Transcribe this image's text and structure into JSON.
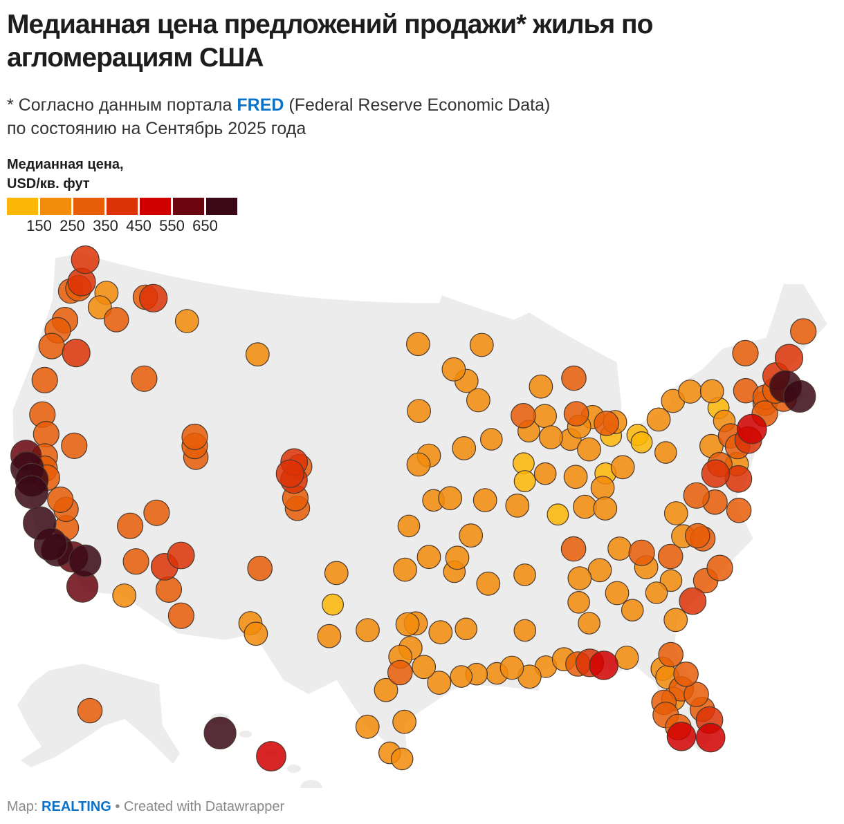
{
  "title": "Медианная цена предложений продажи* жилья по агломерациям США",
  "subtitle": {
    "line1_prefix": "* Согласно данным портала ",
    "line1_link": "FRED",
    "line1_suffix": " (Federal Reserve Economic Data)",
    "line2": "по состоянию на Сентябрь 2025 года"
  },
  "legend": {
    "title_line1": "Медианная цена,",
    "title_line2": "USD/кв. фут",
    "colors": [
      "#fdb706",
      "#f38b0b",
      "#e85d07",
      "#dc3306",
      "#d10000",
      "#6b0610",
      "#3a0816"
    ],
    "ticks": [
      "150",
      "250",
      "350",
      "450",
      "550",
      "650"
    ]
  },
  "footer": {
    "prefix": "Map: ",
    "brand": "REALTING",
    "suffix": " • Created with Datawrapper"
  },
  "map_style": {
    "land": "#ececec",
    "border": "#999999",
    "marker_stroke": "#4a3a30"
  },
  "markers": [
    [
      -122.3,
      47.6,
      400
    ],
    [
      -122.5,
      48.75,
      400
    ],
    [
      -122.4,
      47.25,
      300
    ],
    [
      -122.9,
      47.0,
      250
    ],
    [
      -120.3,
      47.4,
      200
    ],
    [
      -117.4,
      47.66,
      250
    ],
    [
      -116.8,
      47.7,
      400
    ],
    [
      -119.1,
      46.2,
      250
    ],
    [
      -120.5,
      46.6,
      200
    ],
    [
      -122.7,
      45.5,
      300
    ],
    [
      -123.0,
      44.9,
      300
    ],
    [
      -121.3,
      44.05,
      400
    ],
    [
      -123.1,
      44.05,
      300
    ],
    [
      -122.9,
      42.3,
      300
    ],
    [
      -116.2,
      43.6,
      300
    ],
    [
      -114.0,
      46.9,
      200
    ],
    [
      -108.5,
      45.8,
      200
    ],
    [
      -122.4,
      40.6,
      300
    ],
    [
      -121.8,
      39.7,
      300
    ],
    [
      -121.5,
      38.6,
      300
    ],
    [
      -122.7,
      38.4,
      550
    ],
    [
      -122.4,
      37.8,
      700
    ],
    [
      -121.9,
      37.3,
      700
    ],
    [
      -121.3,
      38.0,
      300
    ],
    [
      -121.0,
      37.6,
      300
    ],
    [
      -119.8,
      36.7,
      300
    ],
    [
      -121.7,
      36.7,
      700
    ],
    [
      -120.7,
      35.3,
      700
    ],
    [
      -119.0,
      35.4,
      250
    ],
    [
      -119.3,
      36.3,
      250
    ],
    [
      -119.7,
      34.4,
      700
    ],
    [
      -119.2,
      34.2,
      650
    ],
    [
      -118.2,
      34.05,
      550
    ],
    [
      -117.4,
      34.0,
      650
    ],
    [
      -117.2,
      32.7,
      600
    ],
    [
      -119.8,
      39.5,
      300
    ],
    [
      -115.1,
      36.2,
      300
    ],
    [
      -114.6,
      32.7,
      200
    ],
    [
      -112.0,
      33.4,
      300
    ],
    [
      -111.0,
      32.2,
      300
    ],
    [
      -112.5,
      34.5,
      350
    ],
    [
      -114.3,
      34.5,
      300
    ],
    [
      -113.6,
      37.1,
      300
    ],
    [
      -111.9,
      40.75,
      300
    ],
    [
      -111.7,
      40.2,
      250
    ],
    [
      -112.0,
      41.2,
      300
    ],
    [
      -111.6,
      35.2,
      350
    ],
    [
      -105.0,
      39.7,
      350
    ],
    [
      -105.3,
      40.0,
      400
    ],
    [
      -105.1,
      40.6,
      350
    ],
    [
      -104.7,
      40.4,
      250
    ],
    [
      -104.8,
      38.8,
      300
    ],
    [
      -104.6,
      38.3,
      250
    ],
    [
      -106.6,
      35.1,
      250
    ],
    [
      -106.8,
      32.3,
      200
    ],
    [
      -106.4,
      31.8,
      200
    ],
    [
      -101.8,
      35.2,
      200
    ],
    [
      -101.9,
      33.6,
      130
    ],
    [
      -102.0,
      32.0,
      200
    ],
    [
      -96.8,
      46.9,
      200
    ],
    [
      -96.7,
      43.5,
      200
    ],
    [
      -93.3,
      45.0,
      200
    ],
    [
      -92.1,
      46.8,
      200
    ],
    [
      -94.2,
      45.6,
      200
    ],
    [
      -92.5,
      44.0,
      200
    ],
    [
      -89.4,
      43.1,
      250
    ],
    [
      -87.9,
      43.0,
      200
    ],
    [
      -88.0,
      44.5,
      200
    ],
    [
      -87.6,
      41.9,
      200
    ],
    [
      -93.6,
      41.6,
      200
    ],
    [
      -91.7,
      42.0,
      150
    ],
    [
      -96.0,
      41.25,
      200
    ],
    [
      -96.7,
      40.8,
      200
    ],
    [
      -94.6,
      39.1,
      200
    ],
    [
      -97.3,
      37.7,
      150
    ],
    [
      -95.7,
      39.0,
      150
    ],
    [
      -93.3,
      37.2,
      200
    ],
    [
      -90.2,
      38.6,
      200
    ],
    [
      -92.3,
      38.95,
      200
    ],
    [
      -89.6,
      40.7,
      130
    ],
    [
      -89.6,
      39.8,
      130
    ],
    [
      -88.2,
      40.1,
      150
    ],
    [
      -89.1,
      42.3,
      150
    ],
    [
      -86.2,
      39.8,
      200
    ],
    [
      -85.1,
      41.1,
      200
    ],
    [
      -86.3,
      41.7,
      150
    ],
    [
      -85.7,
      42.96,
      250
    ],
    [
      -84.6,
      42.7,
      200
    ],
    [
      -83.1,
      42.3,
      200
    ],
    [
      -83.7,
      42.3,
      250
    ],
    [
      -85.6,
      42.3,
      200
    ],
    [
      -85.6,
      44.76,
      250
    ],
    [
      -83.5,
      41.65,
      130
    ],
    [
      -81.7,
      41.5,
      130
    ],
    [
      -81.5,
      41.1,
      130
    ],
    [
      -83.0,
      40.0,
      200
    ],
    [
      -84.5,
      39.1,
      200
    ],
    [
      -84.2,
      39.8,
      130
    ],
    [
      -85.8,
      38.25,
      200
    ],
    [
      -84.5,
      38.05,
      200
    ],
    [
      -87.6,
      38.0,
      130
    ],
    [
      -80.0,
      40.4,
      150
    ],
    [
      -80.1,
      42.1,
      200
    ],
    [
      -78.9,
      42.9,
      200
    ],
    [
      -77.6,
      43.2,
      200
    ],
    [
      -76.1,
      43.0,
      200
    ],
    [
      -73.8,
      42.65,
      250
    ],
    [
      -75.9,
      42.1,
      130
    ],
    [
      -75.7,
      41.4,
      150
    ],
    [
      -75.5,
      40.6,
      250
    ],
    [
      -76.9,
      40.3,
      200
    ],
    [
      -75.2,
      40.0,
      250
    ],
    [
      -74.0,
      40.7,
      500
    ],
    [
      -74.4,
      40.2,
      350
    ],
    [
      -72.7,
      41.8,
      250
    ],
    [
      -72.9,
      41.3,
      300
    ],
    [
      -71.4,
      41.8,
      300
    ],
    [
      -71.06,
      42.36,
      650
    ],
    [
      -71.8,
      42.3,
      300
    ],
    [
      -72.6,
      42.1,
      250
    ],
    [
      -71.5,
      43.0,
      350
    ],
    [
      -70.3,
      43.7,
      400
    ],
    [
      -73.2,
      44.5,
      300
    ],
    [
      -68.8,
      44.8,
      300
    ],
    [
      -70.3,
      41.7,
      650
    ],
    [
      -76.6,
      39.3,
      250
    ],
    [
      -77.0,
      38.9,
      400
    ],
    [
      -77.4,
      37.5,
      250
    ],
    [
      -76.0,
      36.85,
      250
    ],
    [
      -78.5,
      38.0,
      300
    ],
    [
      -80.0,
      37.3,
      200
    ],
    [
      -75.5,
      39.15,
      200
    ],
    [
      -75.6,
      38.4,
      350
    ],
    [
      -78.6,
      35.8,
      250
    ],
    [
      -78.9,
      36.0,
      250
    ],
    [
      -79.8,
      36.1,
      200
    ],
    [
      -80.8,
      35.2,
      250
    ],
    [
      -82.55,
      35.6,
      300
    ],
    [
      -77.9,
      34.2,
      300
    ],
    [
      -78.9,
      33.7,
      250
    ],
    [
      -79.9,
      32.8,
      350
    ],
    [
      -81.0,
      34.0,
      150
    ],
    [
      -82.4,
      34.85,
      200
    ],
    [
      -83.9,
      35.96,
      200
    ],
    [
      -86.8,
      36.2,
      250
    ],
    [
      -90.0,
      35.1,
      150
    ],
    [
      -85.3,
      35.0,
      200
    ],
    [
      -84.4,
      33.75,
      200
    ],
    [
      -82.0,
      33.5,
      150
    ],
    [
      -81.1,
      32.0,
      200
    ],
    [
      -83.6,
      32.8,
      150
    ],
    [
      -86.8,
      33.5,
      150
    ],
    [
      -86.6,
      34.7,
      200
    ],
    [
      -86.3,
      32.4,
      150
    ],
    [
      -88.0,
      30.7,
      200
    ],
    [
      -87.2,
      30.4,
      250
    ],
    [
      -86.5,
      30.4,
      400
    ],
    [
      -85.7,
      30.2,
      450
    ],
    [
      -84.3,
      30.45,
      200
    ],
    [
      -81.7,
      30.3,
      250
    ],
    [
      -82.3,
      29.65,
      200
    ],
    [
      -82.1,
      29.2,
      200
    ],
    [
      -81.4,
      28.5,
      250
    ],
    [
      -82.5,
      27.95,
      250
    ],
    [
      -82.5,
      27.3,
      300
    ],
    [
      -81.9,
      26.6,
      300
    ],
    [
      -81.8,
      26.1,
      450
    ],
    [
      -80.2,
      25.8,
      450
    ],
    [
      -80.1,
      26.7,
      350
    ],
    [
      -80.4,
      27.3,
      250
    ],
    [
      -80.6,
      28.1,
      250
    ],
    [
      -81.0,
      29.2,
      250
    ],
    [
      -81.95,
      28.05,
      200
    ],
    [
      -90.2,
      32.3,
      150
    ],
    [
      -89.1,
      30.4,
      150
    ],
    [
      -90.1,
      29.95,
      200
    ],
    [
      -91.1,
      30.45,
      200
    ],
    [
      -92.0,
      30.2,
      150
    ],
    [
      -93.2,
      30.2,
      150
    ],
    [
      -93.75,
      32.5,
      150
    ],
    [
      -92.3,
      34.75,
      200
    ],
    [
      -94.2,
      36.1,
      200
    ],
    [
      -94.4,
      35.4,
      150
    ],
    [
      -96.0,
      36.15,
      200
    ],
    [
      -97.5,
      35.5,
      200
    ],
    [
      -96.8,
      32.8,
      200
    ],
    [
      -97.3,
      32.75,
      200
    ],
    [
      -95.3,
      32.35,
      200
    ],
    [
      -97.1,
      31.55,
      200
    ],
    [
      -97.7,
      30.3,
      250
    ],
    [
      -98.5,
      29.4,
      200
    ],
    [
      -95.4,
      29.8,
      200
    ],
    [
      -94.1,
      30.1,
      150
    ],
    [
      -97.4,
      27.8,
      200
    ],
    [
      -98.2,
      26.2,
      150
    ],
    [
      -97.5,
      25.9,
      150
    ],
    [
      -97.7,
      31.1,
      200
    ],
    [
      -96.3,
      30.6,
      200
    ],
    [
      -99.5,
      27.5,
      200
    ],
    [
      -99.7,
      32.4,
      200
    ]
  ],
  "inset_markers": {
    "alaska": [
      [
        -149.9,
        61.2,
        250
      ]
    ],
    "hawaii": [
      [
        -157.86,
        21.3,
        500
      ],
      [
        -159.4,
        22.0,
        650
      ]
    ]
  }
}
